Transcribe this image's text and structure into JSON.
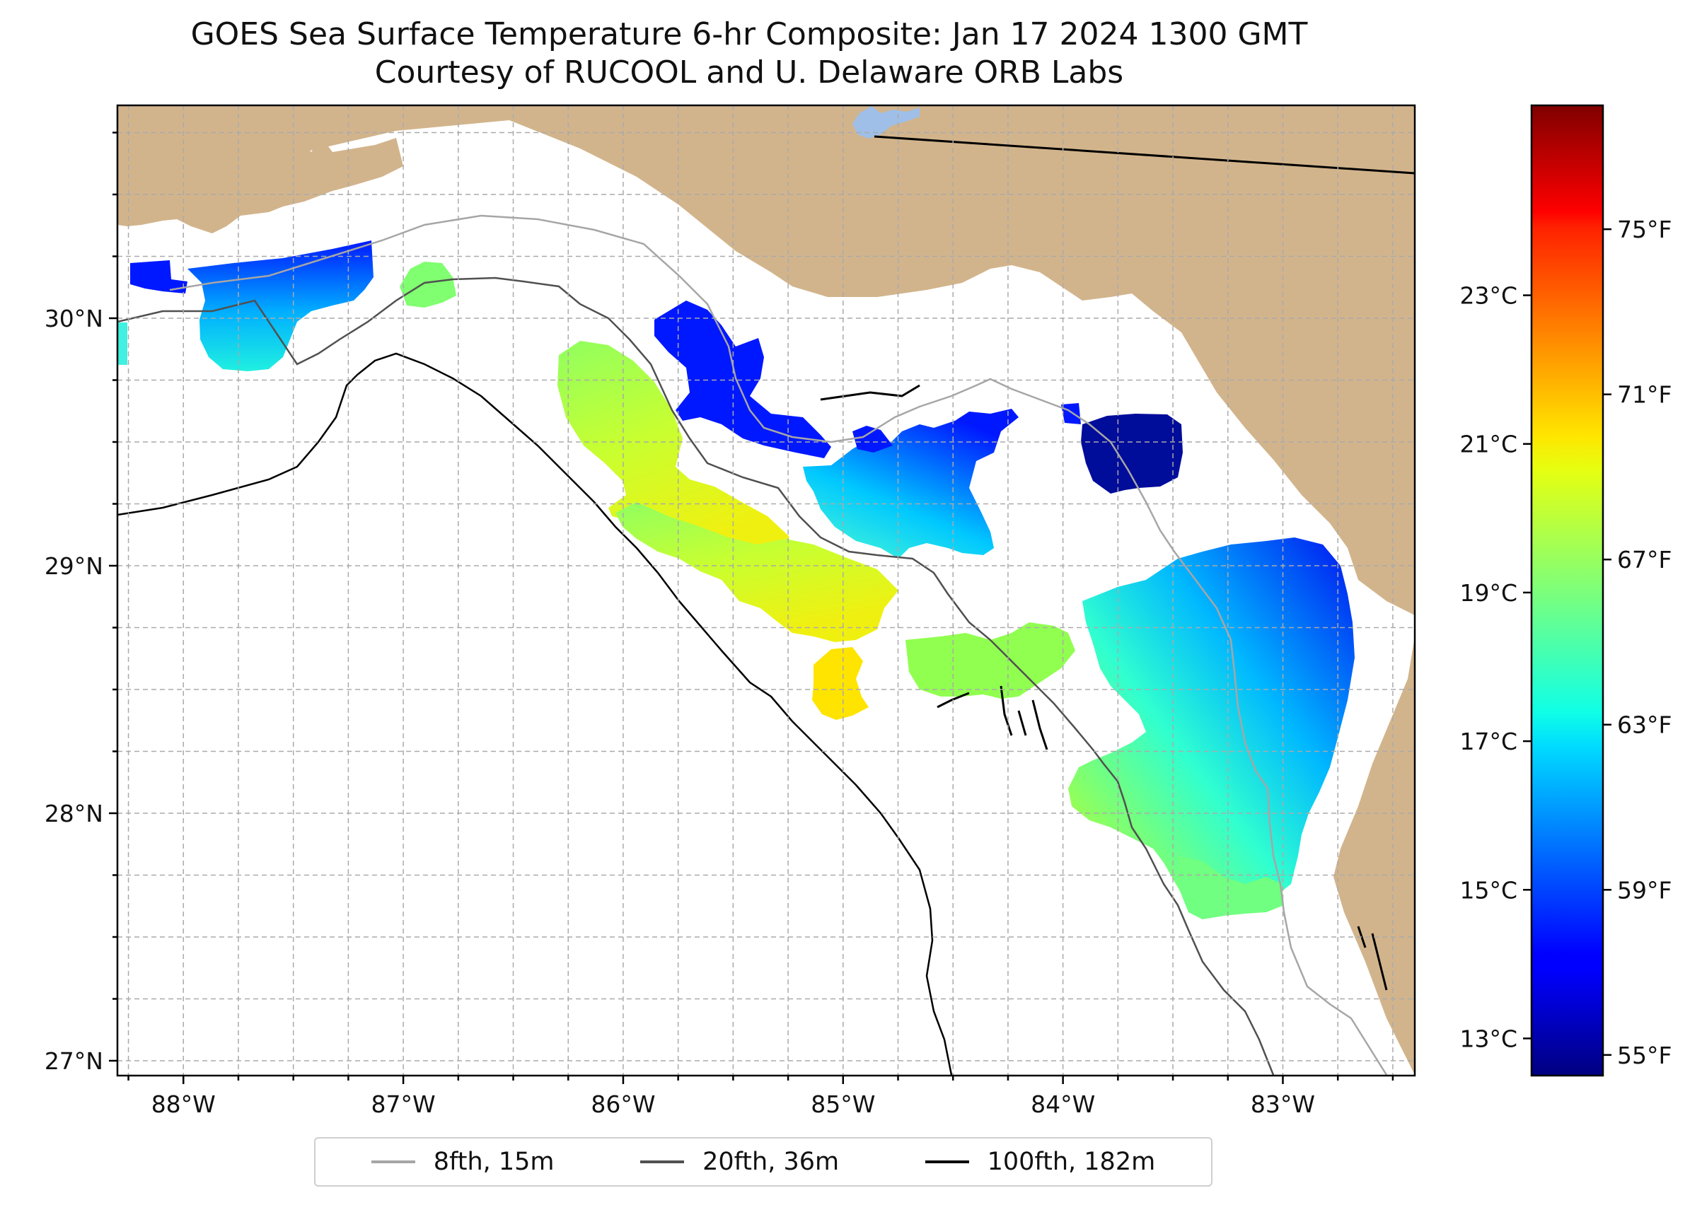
{
  "title": {
    "line1": "GOES Sea Surface Temperature 6-hr Composite: Jan 17 2024 1300 GMT",
    "line2": "Courtesy of RUCOOL and U. Delaware ORB Labs"
  },
  "map": {
    "lon_range": [
      -88.3,
      -82.4
    ],
    "lat_range": [
      26.94,
      30.86
    ],
    "lon_ticks": [
      {
        "v": -88,
        "label": "88°W"
      },
      {
        "v": -87,
        "label": "87°W"
      },
      {
        "v": -86,
        "label": "86°W"
      },
      {
        "v": -85,
        "label": "85°W"
      },
      {
        "v": -84,
        "label": "84°W"
      },
      {
        "v": -83,
        "label": "83°W"
      }
    ],
    "lat_ticks": [
      {
        "v": 27,
        "label": "27°N"
      },
      {
        "v": 28,
        "label": "28°N"
      },
      {
        "v": 29,
        "label": "29°N"
      },
      {
        "v": 30,
        "label": "30°N"
      }
    ],
    "land_color": "#d2b48c",
    "water_color": "#ffffff",
    "lake_color": "#9fbfe8"
  },
  "colorbar": {
    "colormap": "jet",
    "range_f": [
      54.5,
      78
    ],
    "celsius_ticks": [
      {
        "v": 13,
        "label": "13°C"
      },
      {
        "v": 15,
        "label": "15°C"
      },
      {
        "v": 17,
        "label": "17°C"
      },
      {
        "v": 19,
        "label": "19°C"
      },
      {
        "v": 21,
        "label": "21°C"
      },
      {
        "v": 23,
        "label": "23°C"
      }
    ],
    "fahrenheit_ticks": [
      {
        "v": 55,
        "label": "55°F"
      },
      {
        "v": 59,
        "label": "59°F"
      },
      {
        "v": 63,
        "label": "63°F"
      },
      {
        "v": 67,
        "label": "67°F"
      },
      {
        "v": 71,
        "label": "71°F"
      },
      {
        "v": 75,
        "label": "75°F"
      }
    ]
  },
  "legend": [
    {
      "label": "8fth, 15m",
      "color": "#a6a6a6"
    },
    {
      "label": "20fth, 36m",
      "color": "#505050"
    },
    {
      "label": "100fth, 182m",
      "color": "#000000"
    }
  ]
}
